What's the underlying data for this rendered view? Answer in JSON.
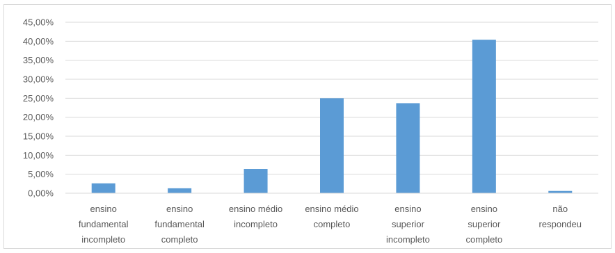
{
  "chart_data": {
    "type": "bar",
    "categories": [
      [
        "ensino",
        "fundamental",
        "incompleto"
      ],
      [
        "ensino",
        "fundamental",
        "completo"
      ],
      [
        "ensino médio",
        "incompleto"
      ],
      [
        "ensino médio",
        "completo"
      ],
      [
        "ensino",
        "superior",
        "incompleto"
      ],
      [
        "ensino",
        "superior",
        "completo"
      ],
      [
        "não",
        "respondeu"
      ]
    ],
    "values": [
      2.6,
      1.3,
      6.4,
      25.0,
      23.7,
      40.4,
      0.6
    ],
    "ylim": [
      0,
      45
    ],
    "yticks": [
      0,
      5,
      10,
      15,
      20,
      25,
      30,
      35,
      40,
      45
    ],
    "ytick_labels": [
      "0,00%",
      "5,00%",
      "10,00%",
      "15,00%",
      "20,00%",
      "25,00%",
      "30,00%",
      "35,00%",
      "40,00%",
      "45,00%"
    ],
    "grid": true,
    "bar_color": "#5b9bd5",
    "grid_color": "#d9d9d9"
  }
}
